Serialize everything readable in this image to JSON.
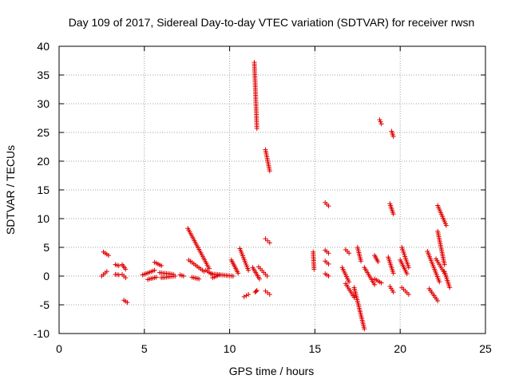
{
  "chart_data": {
    "type": "scatter",
    "title": "Day 109 of 2017, Sidereal Day-to-day VTEC variation (SDTVAR) for receiver rwsn",
    "xlabel": "GPS time / hours",
    "ylabel": "SDTVAR / TECUs",
    "xlim": [
      0,
      25
    ],
    "ylim": [
      -10,
      40
    ],
    "xticks": [
      0,
      5,
      10,
      15,
      20,
      25
    ],
    "yticks": [
      -10,
      -5,
      0,
      5,
      10,
      15,
      20,
      25,
      30,
      35,
      40
    ],
    "grid": true,
    "marker": "+",
    "colors": {
      "points": "#e00000",
      "grid": "#a0a0a0",
      "axes": "#000000"
    },
    "series": [
      {
        "name": "SDTVAR",
        "segments": [
          {
            "x": [
              2.5,
              2.8
            ],
            "y": [
              0.0,
              0.8
            ]
          },
          {
            "x": [
              2.6,
              2.9
            ],
            "y": [
              4.2,
              3.6
            ]
          },
          {
            "x": [
              3.3,
              3.5
            ],
            "y": [
              2.0,
              1.8
            ]
          },
          {
            "x": [
              3.3,
              3.5
            ],
            "y": [
              0.3,
              0.2
            ]
          },
          {
            "x": [
              3.7,
              3.9
            ],
            "y": [
              2.0,
              1.2
            ]
          },
          {
            "x": [
              3.7,
              3.9
            ],
            "y": [
              0.3,
              -0.3
            ]
          },
          {
            "x": [
              3.8,
              4.0
            ],
            "y": [
              -4.2,
              -4.6
            ]
          },
          {
            "x": [
              4.9,
              5.6
            ],
            "y": [
              0.2,
              1.0
            ]
          },
          {
            "x": [
              5.2,
              5.7
            ],
            "y": [
              -0.6,
              -0.2
            ]
          },
          {
            "x": [
              5.6,
              6.0
            ],
            "y": [
              2.4,
              1.8
            ]
          },
          {
            "x": [
              5.9,
              6.7
            ],
            "y": [
              0.6,
              0.3
            ]
          },
          {
            "x": [
              6.0,
              6.8
            ],
            "y": [
              -0.3,
              0.0
            ]
          },
          {
            "x": [
              7.1,
              7.3
            ],
            "y": [
              0.2,
              0.0
            ]
          },
          {
            "x": [
              7.55,
              8.8
            ],
            "y": [
              8.3,
              1.3
            ]
          },
          {
            "x": [
              7.6,
              8.5
            ],
            "y": [
              2.8,
              0.8
            ]
          },
          {
            "x": [
              7.8,
              8.2
            ],
            "y": [
              -0.2,
              -0.5
            ]
          },
          {
            "x": [
              8.6,
              9.0
            ],
            "y": [
              1.0,
              0.3
            ]
          },
          {
            "x": [
              8.9,
              10.2
            ],
            "y": [
              0.4,
              0.0
            ]
          },
          {
            "x": [
              9.0,
              9.4
            ],
            "y": [
              -0.3,
              0.2
            ]
          },
          {
            "x": [
              10.1,
              10.5
            ],
            "y": [
              2.8,
              0.5
            ]
          },
          {
            "x": [
              10.6,
              11.1
            ],
            "y": [
              4.8,
              1.0
            ]
          },
          {
            "x": [
              10.85,
              11.1
            ],
            "y": [
              -3.6,
              -3.2
            ]
          },
          {
            "x": [
              11.35,
              11.75
            ],
            "y": [
              1.5,
              -0.5
            ]
          },
          {
            "x": [
              11.45,
              11.6
            ],
            "y": [
              37.2,
              25.7
            ]
          },
          {
            "x": [
              11.5,
              11.6
            ],
            "y": [
              -2.8,
              -2.5
            ]
          },
          {
            "x": [
              11.7,
              12.2
            ],
            "y": [
              1.6,
              0.0
            ]
          },
          {
            "x": [
              12.1,
              12.35
            ],
            "y": [
              22.0,
              18.3
            ]
          },
          {
            "x": [
              12.1,
              12.35
            ],
            "y": [
              6.5,
              5.8
            ]
          },
          {
            "x": [
              12.1,
              12.35
            ],
            "y": [
              -2.6,
              -3.2
            ]
          },
          {
            "x": [
              14.9,
              14.95
            ],
            "y": [
              4.2,
              1.2
            ]
          },
          {
            "x": [
              15.6,
              15.8
            ],
            "y": [
              12.8,
              12.2
            ]
          },
          {
            "x": [
              15.6,
              15.8
            ],
            "y": [
              4.5,
              4.0
            ]
          },
          {
            "x": [
              15.6,
              15.8
            ],
            "y": [
              2.6,
              2.1
            ]
          },
          {
            "x": [
              15.6,
              15.8
            ],
            "y": [
              0.4,
              0.0
            ]
          },
          {
            "x": [
              16.6,
              17.0
            ],
            "y": [
              1.5,
              -1.0
            ]
          },
          {
            "x": [
              16.8,
              17.0
            ],
            "y": [
              4.6,
              4.0
            ]
          },
          {
            "x": [
              16.8,
              17.3
            ],
            "y": [
              -1.3,
              -3.7
            ]
          },
          {
            "x": [
              17.3,
              17.9
            ],
            "y": [
              -2.0,
              -9.2
            ]
          },
          {
            "x": [
              17.5,
              17.7
            ],
            "y": [
              5.0,
              2.6
            ]
          },
          {
            "x": [
              17.9,
              18.5
            ],
            "y": [
              1.5,
              -1.5
            ]
          },
          {
            "x": [
              18.5,
              18.7
            ],
            "y": [
              3.6,
              2.5
            ]
          },
          {
            "x": [
              18.5,
              18.9
            ],
            "y": [
              -0.5,
              -1.2
            ]
          },
          {
            "x": [
              18.8,
              18.9
            ],
            "y": [
              27.2,
              26.5
            ]
          },
          {
            "x": [
              19.3,
              19.6
            ],
            "y": [
              3.3,
              0.5
            ]
          },
          {
            "x": [
              19.4,
              19.6
            ],
            "y": [
              12.6,
              10.8
            ]
          },
          {
            "x": [
              19.4,
              19.6
            ],
            "y": [
              -1.8,
              -2.8
            ]
          },
          {
            "x": [
              19.5,
              19.6
            ],
            "y": [
              25.2,
              24.3
            ]
          },
          {
            "x": [
              20.0,
              20.4
            ],
            "y": [
              2.8,
              0.4
            ]
          },
          {
            "x": [
              20.1,
              20.5
            ],
            "y": [
              5.0,
              1.5
            ]
          },
          {
            "x": [
              20.1,
              20.5
            ],
            "y": [
              -2.0,
              -3.2
            ]
          },
          {
            "x": [
              21.6,
              22.3
            ],
            "y": [
              4.3,
              -1.0
            ]
          },
          {
            "x": [
              21.7,
              22.2
            ],
            "y": [
              -2.2,
              -4.3
            ]
          },
          {
            "x": [
              22.1,
              22.6
            ],
            "y": [
              3.0,
              0.5
            ]
          },
          {
            "x": [
              22.2,
              22.7
            ],
            "y": [
              12.3,
              8.8
            ]
          },
          {
            "x": [
              22.2,
              22.6
            ],
            "y": [
              7.8,
              2.0
            ]
          },
          {
            "x": [
              22.6,
              22.9
            ],
            "y": [
              0.8,
              -2.0
            ]
          }
        ]
      }
    ]
  }
}
